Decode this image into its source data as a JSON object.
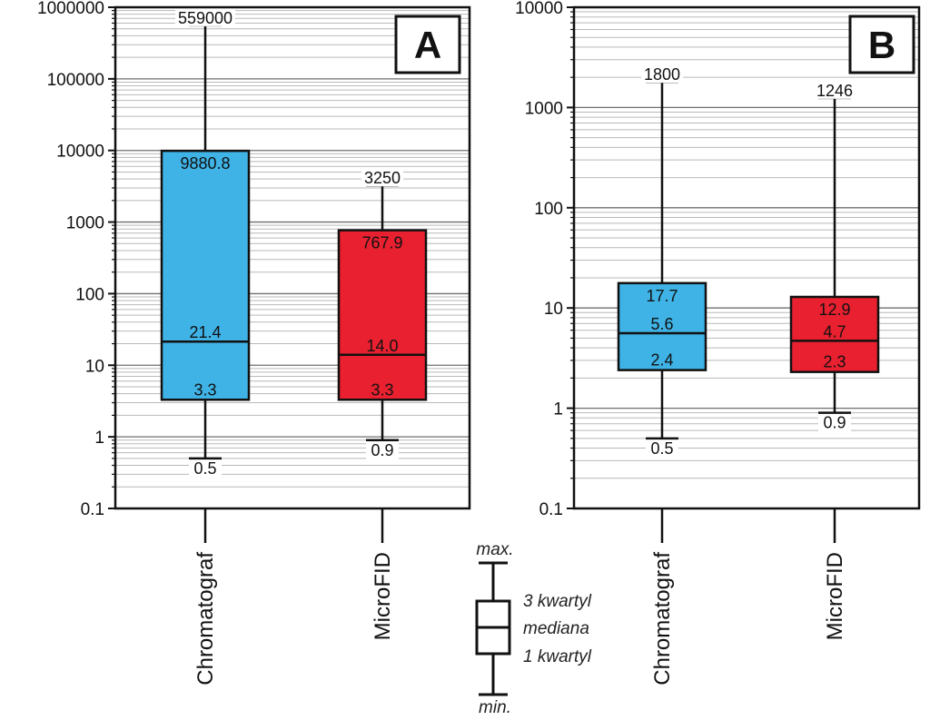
{
  "chart_data": [
    {
      "type": "box",
      "panel_label": "A",
      "yscale": "log",
      "ylim": [
        0.1,
        1000000
      ],
      "ytick_labels": [
        "0.1",
        "1",
        "10",
        "100",
        "1000",
        "10000",
        "100000",
        "1000000"
      ],
      "grid": true,
      "categories": [
        "Chromatograf",
        "MicroFID"
      ],
      "boxes": [
        {
          "category": "Chromatograf",
          "min": 0.5,
          "q1": 3.3,
          "median": 21.4,
          "q3": 9880.8,
          "max": 559000,
          "color": "#3fb3e6",
          "labels": {
            "min": "0.5",
            "q1": "3.3",
            "median": "21.4",
            "q3": "9880.8",
            "max": "559000"
          }
        },
        {
          "category": "MicroFID",
          "min": 0.9,
          "q1": 3.3,
          "median": 14.0,
          "q3": 767.9,
          "max": 3250,
          "color": "#e8202f",
          "labels": {
            "min": "0.9",
            "q1": "3.3",
            "median": "14.0",
            "q3": "767.9",
            "max": "3250"
          }
        }
      ]
    },
    {
      "type": "box",
      "panel_label": "B",
      "yscale": "log",
      "ylim": [
        0.1,
        10000
      ],
      "ytick_labels": [
        "0.1",
        "1",
        "10",
        "100",
        "1000",
        "10000"
      ],
      "grid": true,
      "categories": [
        "Chromatograf",
        "MicroFID"
      ],
      "boxes": [
        {
          "category": "Chromatograf",
          "min": 0.5,
          "q1": 2.4,
          "median": 5.6,
          "q3": 17.7,
          "max": 1800,
          "color": "#3fb3e6",
          "labels": {
            "min": "0.5",
            "q1": "2.4",
            "median": "5.6",
            "q3": "17.7",
            "max": "1800"
          }
        },
        {
          "category": "MicroFID",
          "min": 0.9,
          "q1": 2.3,
          "median": 4.7,
          "q3": 12.9,
          "max": 1246,
          "color": "#e8202f",
          "labels": {
            "min": "0.9",
            "q1": "2.3",
            "median": "4.7",
            "q3": "12.9",
            "max": "1246"
          }
        }
      ]
    }
  ],
  "legend": {
    "max": "max.",
    "q3": "3 kwartyl",
    "median": "mediana",
    "q1": "1 kwartyl",
    "min": "min."
  }
}
